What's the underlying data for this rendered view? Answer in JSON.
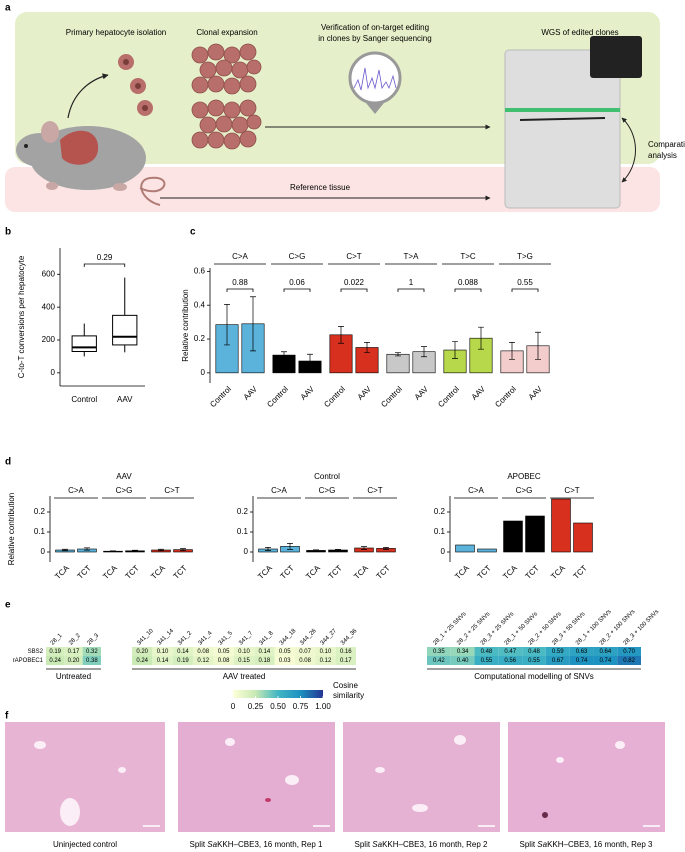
{
  "panel_labels": [
    "a",
    "b",
    "c",
    "d",
    "e",
    "f"
  ],
  "panel_a": {
    "isolation": "Primary hepatocyte isolation",
    "expansion": "Clonal expansion",
    "verification": [
      "Verification of on-target editing",
      "in clones by Sanger sequencing"
    ],
    "wgs": "WGS of edited clones",
    "reference": "Reference tissue",
    "comparative": [
      "Comparative",
      "analysis"
    ]
  },
  "chart_data": [
    {
      "type": "box",
      "ylabel": "C-to-T conversions per hepatocyte",
      "categories": [
        "Control",
        "AAV"
      ],
      "boxes": [
        {
          "min": 100,
          "q1": 130,
          "median": 155,
          "q3": 225,
          "max": 300
        },
        {
          "min": 125,
          "q1": 170,
          "median": 220,
          "q3": 350,
          "max": 580
        }
      ],
      "ylim": [
        -80,
        760
      ],
      "yticks": [
        0,
        200,
        400,
        600
      ],
      "annotations": [
        0.29
      ]
    },
    {
      "type": "grouped_bar",
      "ylabel": "Relative contribution",
      "categories": [
        "Control",
        "AAV"
      ],
      "ylim": [
        -0.06,
        0.62
      ],
      "yticks": [
        0,
        0.2,
        0.4,
        0.6
      ],
      "groups": [
        {
          "name": "C>A",
          "color": "#5bb3dc",
          "values": [
            0.285,
            0.29
          ],
          "errors": [
            0.12,
            0.16
          ],
          "p_value": 0.88
        },
        {
          "name": "C>G",
          "color": "#000000",
          "values": [
            0.105,
            0.07
          ],
          "errors": [
            0.02,
            0.04
          ],
          "p_value": 0.06
        },
        {
          "name": "C>T",
          "color": "#d7301f",
          "values": [
            0.225,
            0.15
          ],
          "errors": [
            0.05,
            0.03
          ],
          "p_value": 0.022
        },
        {
          "name": "T>A",
          "color": "#c8c8c8",
          "values": [
            0.11,
            0.125
          ],
          "errors": [
            0.01,
            0.03
          ],
          "p_value": 1
        },
        {
          "name": "T>C",
          "color": "#b7d84b",
          "values": [
            0.135,
            0.205
          ],
          "errors": [
            0.05,
            0.065
          ],
          "p_value": 0.088
        },
        {
          "name": "T>G",
          "color": "#f3cdcb",
          "values": [
            0.13,
            0.16
          ],
          "errors": [
            0.05,
            0.08
          ],
          "p_value": 0.55
        }
      ]
    },
    {
      "type": "grouped_bar",
      "title": "AAV",
      "ylabel": "Relative contribution",
      "categories": [
        "TCA",
        "TCT"
      ],
      "ylim": [
        -0.05,
        0.28
      ],
      "yticks": [
        0,
        0.1,
        0.2
      ],
      "groups": [
        {
          "name": "C>A",
          "color": "#5bb3dc",
          "values": [
            0.01,
            0.015
          ],
          "errors": [
            0.004,
            0.006
          ]
        },
        {
          "name": "C>G",
          "color": "#000000",
          "values": [
            0.004,
            0.006
          ],
          "errors": [
            0.002,
            0.003
          ]
        },
        {
          "name": "C>T",
          "color": "#d7301f",
          "values": [
            0.01,
            0.012
          ],
          "errors": [
            0.004,
            0.005
          ]
        }
      ]
    },
    {
      "type": "grouped_bar",
      "title": "Control",
      "categories": [
        "TCA",
        "TCT"
      ],
      "ylim": [
        -0.05,
        0.28
      ],
      "yticks": [
        0,
        0.1,
        0.2
      ],
      "groups": [
        {
          "name": "C>A",
          "color": "#5bb3dc",
          "values": [
            0.015,
            0.028
          ],
          "errors": [
            0.008,
            0.015
          ]
        },
        {
          "name": "C>G",
          "color": "#000000",
          "values": [
            0.008,
            0.01
          ],
          "errors": [
            0.003,
            0.003
          ]
        },
        {
          "name": "C>T",
          "color": "#d7301f",
          "values": [
            0.02,
            0.018
          ],
          "errors": [
            0.007,
            0.005
          ]
        }
      ]
    },
    {
      "type": "grouped_bar",
      "title": "APOBEC",
      "categories": [
        "TCA",
        "TCT"
      ],
      "ylim": [
        -0.05,
        0.28
      ],
      "yticks": [
        0,
        0.1,
        0.2
      ],
      "groups": [
        {
          "name": "C>A",
          "color": "#5bb3dc",
          "values": [
            0.035,
            0.015
          ]
        },
        {
          "name": "C>G",
          "color": "#000000",
          "values": [
            0.155,
            0.18
          ]
        },
        {
          "name": "C>T",
          "color": "#d7301f",
          "values": [
            0.265,
            0.145
          ]
        }
      ]
    },
    {
      "type": "heatmap",
      "rows": [
        "SBS2",
        "rAPOBEC1"
      ],
      "groups": [
        {
          "name": "Untreated",
          "columns": [
            "28_1",
            "28_2",
            "28_3"
          ],
          "values": [
            [
              0.19,
              0.17,
              0.32
            ],
            [
              0.24,
              0.2,
              0.38
            ]
          ],
          "value_labels": [
            [
              "0.19",
              "0.17",
              "0.32"
            ],
            [
              "0.24",
              "0.20",
              "0.38"
            ]
          ]
        },
        {
          "name": "AAV treated",
          "columns": [
            "341_10",
            "341_14",
            "341_2",
            "341_4",
            "341_5",
            "341_7",
            "341_8",
            "344_18",
            "344_26",
            "344_27",
            "344_36"
          ],
          "values": [
            [
              0.2,
              0.1,
              0.14,
              0.08,
              0.05,
              0.1,
              0.14,
              0.05,
              0.07,
              0.1,
              0.16
            ],
            [
              0.24,
              0.14,
              0.19,
              0.12,
              0.08,
              0.15,
              0.18,
              0.03,
              0.08,
              0.12,
              0.17
            ]
          ],
          "value_labels": [
            [
              "0.20",
              "0.10",
              "0.14",
              "0.08",
              "0.05",
              "0.10",
              "0.14",
              "0.05",
              "0.07",
              "0.10",
              "0.16"
            ],
            [
              "0.24",
              "0.14",
              "0.19",
              "0.12",
              "0.08",
              "0.15",
              "0.18",
              "0.03",
              "0.08",
              "0.12",
              "0.17"
            ]
          ]
        },
        {
          "name": "Computational modelling of SNVs",
          "columns": [
            "28_1 + 25 SNVs",
            "28_2 + 25 SNVs",
            "28_3 + 25 SNVs",
            "28_1 + 50 SNVs",
            "28_2 + 50 SNVs",
            "28_3 + 50 SNVs",
            "28_1 + 100 SNVs",
            "28_2 + 100 SNVs",
            "28_3 + 100 SNVs"
          ],
          "values": [
            [
              0.35,
              0.34,
              0.48,
              0.47,
              0.48,
              0.59,
              0.63,
              0.64,
              0.7
            ],
            [
              0.42,
              0.4,
              0.55,
              0.56,
              0.55,
              0.67,
              0.74,
              0.74,
              0.82
            ]
          ],
          "value_labels": [
            [
              "0.35",
              "0.34",
              "0.48",
              "0.47",
              "0.48",
              "0.59",
              "0.63",
              "0.64",
              "0.70"
            ],
            [
              "0.42",
              "0.40",
              "0.55",
              "0.56",
              "0.55",
              "0.67",
              "0.74",
              "0.74",
              "0.82"
            ]
          ]
        }
      ],
      "colorscale": [
        "#ffffd9",
        "#c7e9b4",
        "#41b6c4",
        "#1d91c0",
        "#253494"
      ],
      "clim": [
        0,
        1
      ],
      "cticks": [
        0,
        0.25,
        {
          "value": 0.5,
          "label": "0.50"
        },
        0.75,
        {
          "value": 1,
          "label": "1.00"
        }
      ],
      "legend_title": [
        "Cosine",
        "similarity"
      ]
    }
  ],
  "panel_f": {
    "captions": [
      [
        "Uninjected control"
      ],
      [
        "Split ",
        "Sa",
        "KKH–CBE3, 16 month, Rep 1"
      ],
      [
        "Split ",
        "Sa",
        "KKH–CBE3, 16 month, Rep 2"
      ],
      [
        "Split ",
        "Sa",
        "KKH–CBE3, 16 month, Rep 3"
      ]
    ]
  }
}
